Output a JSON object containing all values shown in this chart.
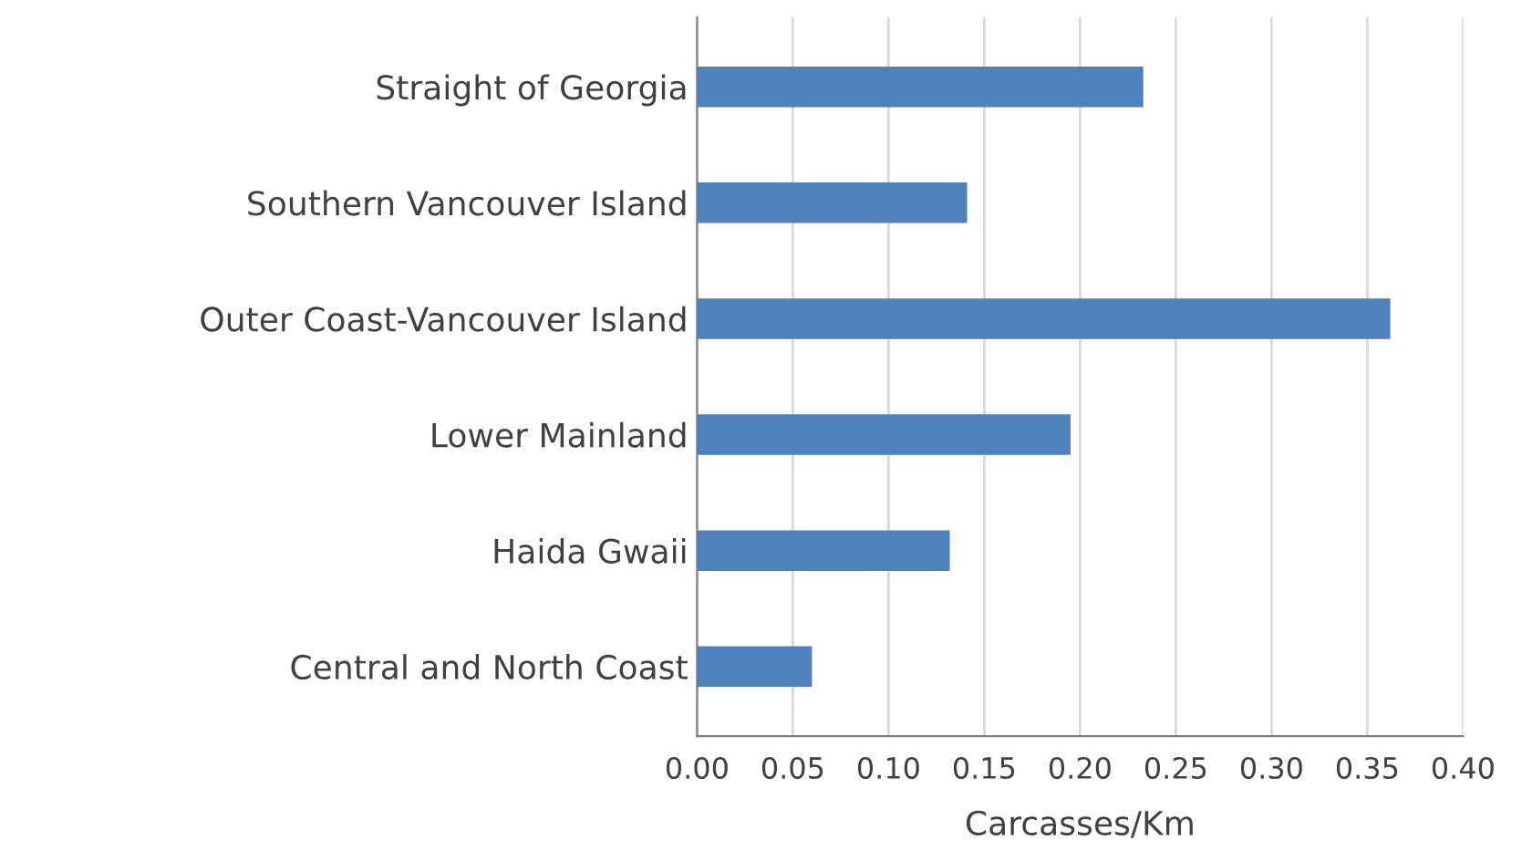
{
  "chart_data": {
    "type": "bar",
    "orientation": "horizontal",
    "categories": [
      "Straight of Georgia",
      "Southern Vancouver Island",
      "Outer Coast-Vancouver Island",
      "Lower Mainland",
      "Haida Gwaii",
      "Central and North Coast"
    ],
    "values": [
      0.233,
      0.141,
      0.362,
      0.195,
      0.132,
      0.06
    ],
    "color": "#4f81bd",
    "xlabel": "Carcasses/Km",
    "xlim": [
      0,
      0.4
    ],
    "xticks": [
      {
        "value": 0,
        "label": "0.00"
      },
      {
        "value": 0.05,
        "label": "0.05"
      },
      {
        "value": 0.1,
        "label": "0.10"
      },
      {
        "value": 0.15,
        "label": "0.15"
      },
      {
        "value": 0.2,
        "label": "0.20"
      },
      {
        "value": 0.25,
        "label": "0.25"
      },
      {
        "value": 0.3,
        "label": "0.30"
      },
      {
        "value": 0.35,
        "label": "0.35"
      },
      {
        "value": 0.4,
        "label": "0.40"
      }
    ],
    "grid": "x"
  }
}
